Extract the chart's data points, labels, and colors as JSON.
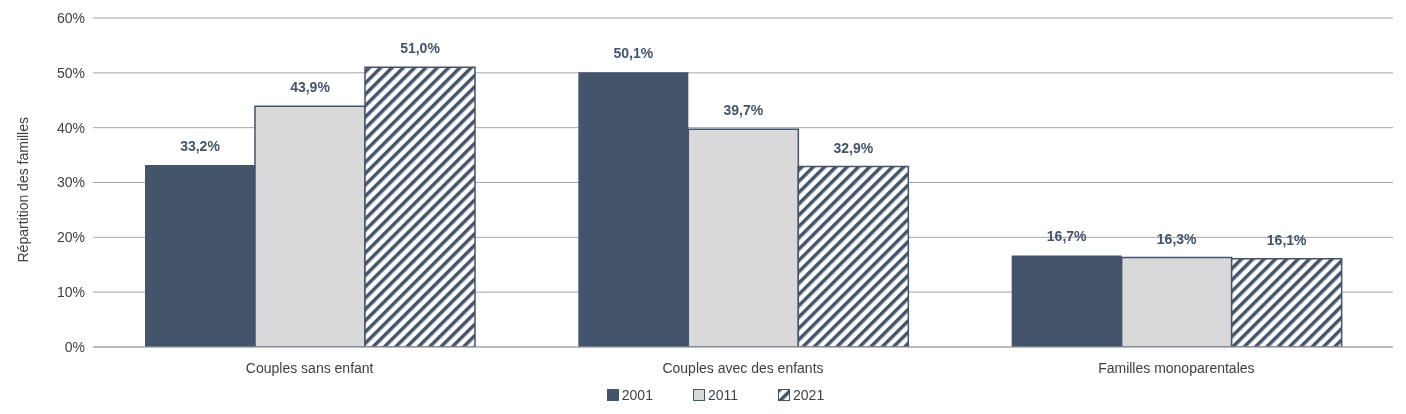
{
  "chart_data": {
    "type": "bar",
    "ylabel": "Répartition des familles",
    "categories": [
      "Couples sans enfant",
      "Couples avec des enfants",
      "Familles monoparentales"
    ],
    "series": [
      {
        "name": "2001",
        "color": "#44546a",
        "values": [
          33.2,
          50.1,
          16.7
        ],
        "value_labels": [
          "33,2%",
          "50,1%",
          "16,7%"
        ]
      },
      {
        "name": "2011",
        "color": "#d9d9d9",
        "values": [
          43.9,
          39.7,
          16.3
        ],
        "value_labels": [
          "43,9%",
          "39,7%",
          "16,3%"
        ]
      },
      {
        "name": "2021",
        "color": "#44546a",
        "values": [
          51.0,
          32.9,
          16.1
        ],
        "value_labels": [
          "51,0%",
          "32,9%",
          "16,1%"
        ]
      }
    ],
    "ylim": [
      0,
      60
    ],
    "yticks": [
      {
        "value": 0,
        "label": "0%"
      },
      {
        "value": 10,
        "label": "10%"
      },
      {
        "value": 20,
        "label": "20%"
      },
      {
        "value": 30,
        "label": "30%"
      },
      {
        "value": 40,
        "label": "40%"
      },
      {
        "value": 50,
        "label": "50%"
      },
      {
        "value": 60,
        "label": "60%"
      }
    ],
    "grid": "y",
    "legend": "bottom"
  }
}
